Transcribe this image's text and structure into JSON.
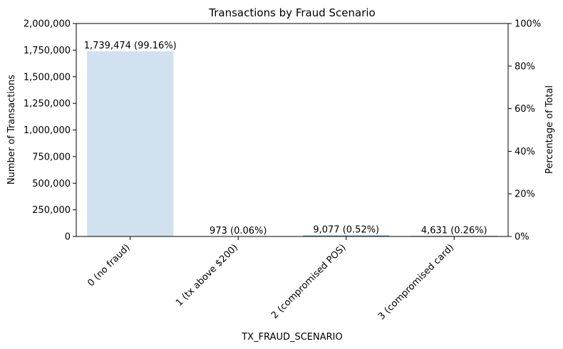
{
  "chart_data": {
    "type": "bar",
    "title": "Transactions by Fraud Scenario",
    "xlabel": "TX_FRAUD_SCENARIO",
    "ylabel": "Number of Transactions",
    "y2label": "Percentage of Total",
    "categories": [
      "0 (no fraud)",
      "1 (tx above $200)",
      "2 (compromised POS)",
      "3 (compromised card)"
    ],
    "values": [
      1739474,
      973,
      9077,
      4631
    ],
    "data_labels": [
      "1,739,474 (99.16%)",
      "973 (0.06%)",
      "9,077 (0.52%)",
      "4,631 (0.26%)"
    ],
    "bar_colors": [
      "#d2e1ef",
      "#a9cde3",
      "#4d9ec9",
      "#1e5f9c"
    ],
    "ylim": [
      0,
      2000000
    ],
    "yticks": [
      0,
      250000,
      500000,
      750000,
      1000000,
      1250000,
      1500000,
      1750000,
      2000000
    ],
    "ytick_labels": [
      "0",
      "250,000",
      "500,000",
      "750,000",
      "1,000,000",
      "1,250,000",
      "1,500,000",
      "1,750,000",
      "2,000,000"
    ],
    "y2lim": [
      0,
      100
    ],
    "y2ticks": [
      0,
      20,
      40,
      60,
      80,
      100
    ],
    "y2tick_labels": [
      "0%",
      "20%",
      "40%",
      "60%",
      "80%",
      "100%"
    ],
    "grid": false,
    "legend": "none"
  }
}
